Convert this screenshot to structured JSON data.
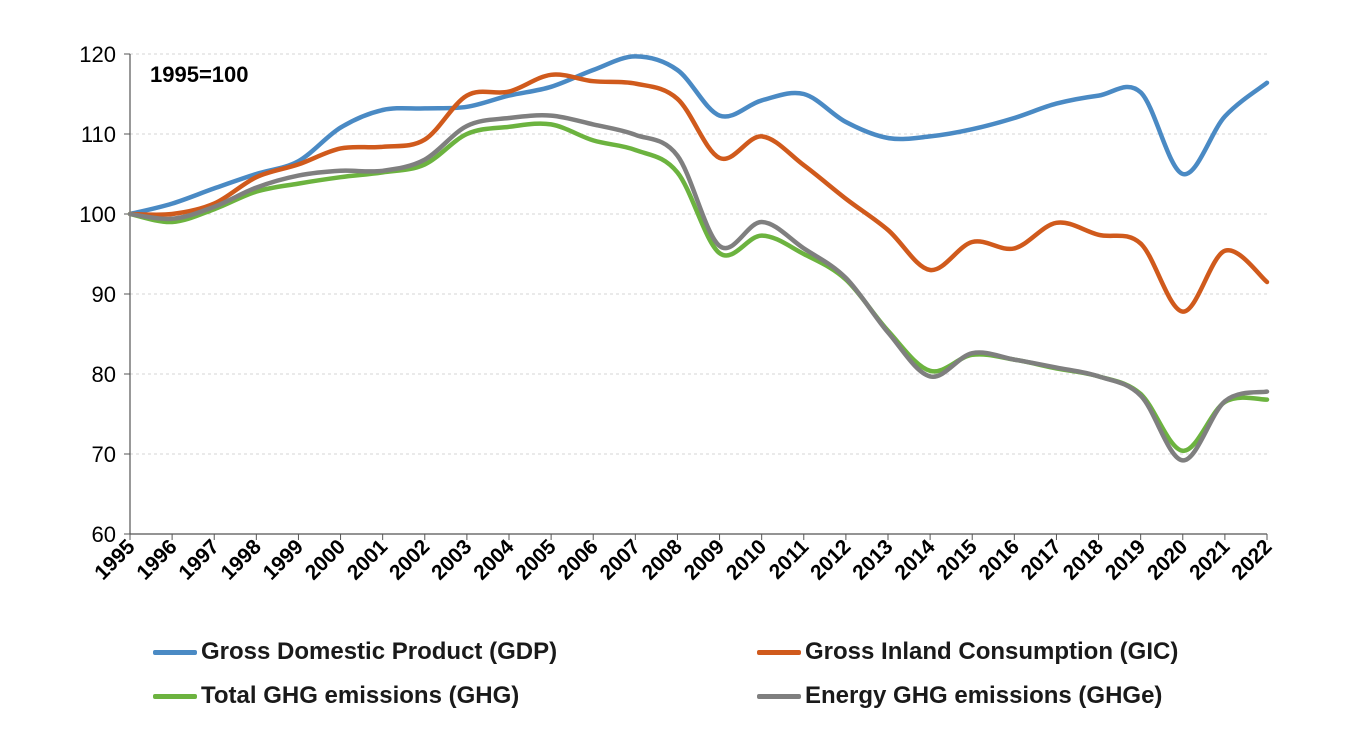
{
  "chart_data": {
    "type": "line",
    "title": "",
    "annotation": "1995=100",
    "xlabel": "",
    "ylabel": "",
    "x": [
      "1995",
      "1996",
      "1997",
      "1998",
      "1999",
      "2000",
      "2001",
      "2002",
      "2003",
      "2004",
      "2005",
      "2006",
      "2007",
      "2008",
      "2009",
      "2010",
      "2011",
      "2012",
      "2013",
      "2014",
      "2015",
      "2016",
      "2017",
      "2018",
      "2019",
      "2020",
      "2021",
      "2022"
    ],
    "ylim": [
      60,
      120
    ],
    "yticks": [
      60,
      70,
      80,
      90,
      100,
      110,
      120
    ],
    "grid": "horizontal-dashed",
    "legend_position": "bottom",
    "series": [
      {
        "name": "Gross Domestic Product (GDP)",
        "color": "#4a8ac4",
        "values": [
          100,
          101.3,
          103.2,
          105,
          106.6,
          110.8,
          113,
          113.2,
          113.4,
          114.8,
          115.9,
          118,
          119.7,
          118,
          112.3,
          114.2,
          115,
          111.5,
          109.5,
          109.7,
          110.6,
          112,
          113.8,
          114.8,
          115.2,
          105,
          112.2,
          116.4
        ]
      },
      {
        "name": "Gross Inland Consumption (GIC)",
        "color": "#d05a1c",
        "values": [
          100,
          100,
          101.3,
          104.6,
          106.2,
          108.2,
          108.4,
          109.3,
          114.8,
          115.3,
          117.4,
          116.6,
          116.3,
          114.4,
          107,
          109.7,
          106.1,
          101.9,
          98,
          93,
          96.5,
          95.7,
          98.9,
          97.4,
          96.3,
          87.8,
          95.4,
          91.5
        ]
      },
      {
        "name": "Total GHG emissions (GHG)",
        "color": "#6cb33f",
        "values": [
          100,
          99,
          100.6,
          102.8,
          103.8,
          104.6,
          105.2,
          106.2,
          110,
          110.9,
          111.2,
          109.2,
          108,
          105.2,
          95.1,
          97.3,
          95,
          91.8,
          85.4,
          80.4,
          82.4,
          81.8,
          80.7,
          79.7,
          77.5,
          70.4,
          76.5,
          76.8
        ]
      },
      {
        "name": "Energy GHG emissions (GHGe)",
        "color": "#7f7f7f",
        "values": [
          100,
          99.4,
          100.9,
          103.3,
          104.8,
          105.4,
          105.4,
          106.8,
          111,
          112,
          112.3,
          111.2,
          109.9,
          107.3,
          96,
          99,
          95.7,
          92,
          85.2,
          79.7,
          82.6,
          81.8,
          80.8,
          79.7,
          77.3,
          69.2,
          76.6,
          77.8
        ]
      }
    ]
  }
}
